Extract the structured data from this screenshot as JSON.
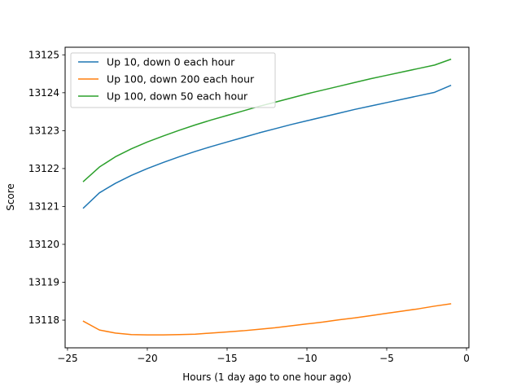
{
  "chart_data": {
    "type": "line",
    "title": "",
    "xlabel": "Hours (1 day ago to one hour ago)",
    "ylabel": "Score",
    "xlim": [
      -25.15,
      0.15
    ],
    "ylim": [
      13117.27,
      13125.2
    ],
    "xticks": [
      -25,
      -20,
      -15,
      -10,
      -5,
      0
    ],
    "xtick_labels": [
      "−25",
      "−20",
      "−15",
      "−10",
      "−5",
      "0"
    ],
    "yticks": [
      13118,
      13119,
      13120,
      13121,
      13122,
      13123,
      13124,
      13125
    ],
    "ytick_labels": [
      "13118",
      "13119",
      "13120",
      "13121",
      "13122",
      "13123",
      "13124",
      "13125"
    ],
    "grid": false,
    "legend_position": "upper-left",
    "x": [
      -24,
      -23,
      -22,
      -21,
      -20,
      -19,
      -18,
      -17,
      -16,
      -15,
      -14,
      -13,
      -12,
      -11,
      -10,
      -9,
      -8,
      -7,
      -6,
      -5,
      -4,
      -3,
      -2,
      -1
    ],
    "series": [
      {
        "name": "Up 10, down 0 each hour",
        "color": "#1f77b4",
        "values": [
          13120.96,
          13121.36,
          13121.61,
          13121.82,
          13122.0,
          13122.16,
          13122.31,
          13122.45,
          13122.58,
          13122.7,
          13122.82,
          13122.94,
          13123.05,
          13123.16,
          13123.26,
          13123.36,
          13123.46,
          13123.56,
          13123.65,
          13123.74,
          13123.83,
          13123.92,
          13124.01,
          13124.19
        ]
      },
      {
        "name": "Up 100, down 200 each hour",
        "color": "#ff7f0e",
        "values": [
          13117.97,
          13117.74,
          13117.66,
          13117.62,
          13117.61,
          13117.61,
          13117.62,
          13117.63,
          13117.66,
          13117.69,
          13117.72,
          13117.76,
          13117.8,
          13117.85,
          13117.9,
          13117.95,
          13118.01,
          13118.06,
          13118.12,
          13118.18,
          13118.24,
          13118.3,
          13118.37,
          13118.43
        ]
      },
      {
        "name": "Up 100, down 50 each hour",
        "color": "#2ca02c",
        "values": [
          13121.66,
          13122.04,
          13122.31,
          13122.52,
          13122.7,
          13122.86,
          13123.01,
          13123.15,
          13123.28,
          13123.4,
          13123.52,
          13123.64,
          13123.75,
          13123.86,
          13123.97,
          13124.07,
          13124.17,
          13124.27,
          13124.37,
          13124.46,
          13124.55,
          13124.64,
          13124.73,
          13124.88
        ]
      }
    ]
  }
}
